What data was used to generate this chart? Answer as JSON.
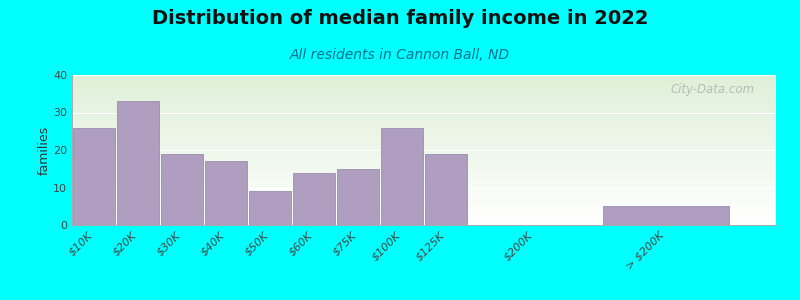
{
  "title": "Distribution of median family income in 2022",
  "subtitle": "All residents in Cannon Ball, ND",
  "ylabel": "families",
  "background_color": "#00FFFF",
  "plot_bg_gradient_top": "#dff0d8",
  "plot_bg_gradient_bottom": "#ffffff",
  "bar_color": "#b09ec0",
  "bar_edge_color": "#9080a8",
  "categories": [
    "$10K",
    "$20K",
    "$30K",
    "$40K",
    "$50K",
    "$60K",
    "$75K",
    "$100K",
    "$125K",
    "$200K",
    "> $200K"
  ],
  "values": [
    26,
    33,
    19,
    17,
    9,
    14,
    15,
    26,
    19,
    0,
    5
  ],
  "bar_positions": [
    0,
    1,
    2,
    3,
    4,
    5,
    6,
    7,
    8,
    10,
    13
  ],
  "bar_widths": [
    0.95,
    0.95,
    0.95,
    0.95,
    0.95,
    0.95,
    0.95,
    0.95,
    0.95,
    0.95,
    2.85
  ],
  "xlim": [
    -0.5,
    15.5
  ],
  "ylim": [
    0,
    40
  ],
  "yticks": [
    0,
    10,
    20,
    30,
    40
  ],
  "title_fontsize": 14,
  "subtitle_fontsize": 10,
  "ylabel_fontsize": 9,
  "tick_fontsize": 8,
  "watermark": "City-Data.com"
}
